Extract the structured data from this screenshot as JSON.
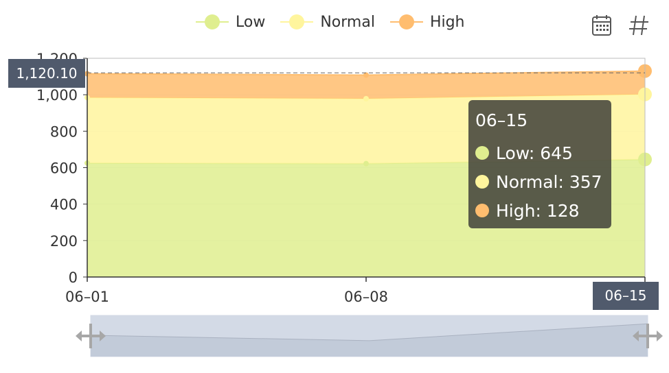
{
  "legend": [
    {
      "label": "Low",
      "color": "#dfee8f"
    },
    {
      "label": "Normal",
      "color": "#fff59d"
    },
    {
      "label": "High",
      "color": "#ffbd6f"
    }
  ],
  "toolbox": {
    "icons": [
      "calendar-icon",
      "number-sign-icon"
    ]
  },
  "tooltip": {
    "title": "06–15",
    "rows": [
      {
        "name": "Low",
        "value": 645,
        "text": "Low: 645",
        "color": "#dfee8f"
      },
      {
        "name": "Normal",
        "value": 357,
        "text": "Normal: 357",
        "color": "#fff59d"
      },
      {
        "name": "High",
        "value": 128,
        "text": "High: 128",
        "color": "#ffbd6f"
      }
    ]
  },
  "axis_pointer": {
    "y_label": "1,120.10",
    "x_label": "06–15"
  },
  "chart_data": {
    "type": "area",
    "stacked": true,
    "x": [
      "06–01",
      "06–08",
      "06–15"
    ],
    "series": [
      {
        "name": "Low",
        "values": [
          625,
          622,
          645
        ],
        "color": "#dfee8f"
      },
      {
        "name": "Normal",
        "values": [
          359,
          356,
          357
        ],
        "color": "#fff59d"
      },
      {
        "name": "High",
        "values": [
          131,
          130,
          128
        ],
        "color": "#ffbd6f"
      }
    ],
    "ylim": [
      0,
      1200
    ],
    "y_ticks": [
      0,
      200,
      400,
      600,
      800,
      1000,
      1200
    ],
    "y_tick_labels": [
      "0",
      "200",
      "400",
      "600",
      "800",
      "1,000",
      "1,200"
    ],
    "grid": true,
    "legend_position": "top-center",
    "pointer_y_value": 1120.1
  }
}
